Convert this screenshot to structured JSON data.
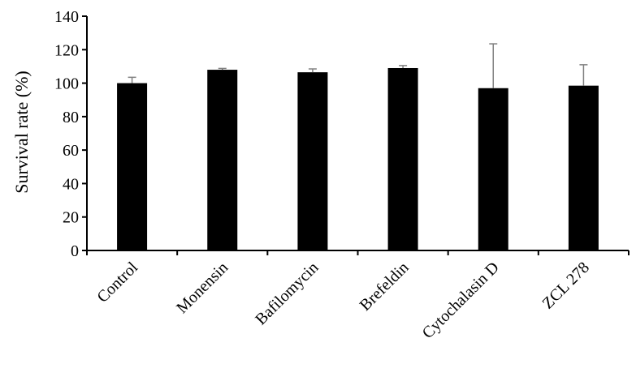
{
  "chart_data": {
    "type": "bar",
    "title": "",
    "xlabel": "",
    "ylabel": "Survival rate (%)",
    "ylim": [
      0,
      140
    ],
    "yticks": [
      0,
      20,
      40,
      60,
      80,
      100,
      120,
      140
    ],
    "categories": [
      "Control",
      "Monensin",
      "Bafilomycin",
      "Brefeldin",
      "Cytochalasin D",
      "ZCL 278"
    ],
    "values": [
      100,
      108,
      106.5,
      109,
      97,
      98.5
    ],
    "error": [
      3.5,
      0.8,
      2,
      1.5,
      26.5,
      12.5
    ],
    "error_direction": "upper",
    "grid": false,
    "legend": "none",
    "colors": {
      "bar": "#000000",
      "error_bar": "#808080",
      "axis": "#000000"
    }
  }
}
